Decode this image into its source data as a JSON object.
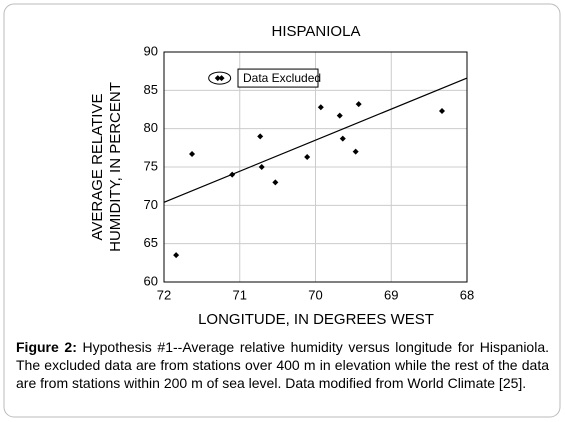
{
  "chart_data": {
    "type": "scatter",
    "title": "HISPANIOLA",
    "xlabel": "LONGITUDE, IN DEGREES WEST",
    "ylabel": [
      "AVERAGE RELATIVE",
      "HUMIDITY, IN PERCENT"
    ],
    "x": [
      71.84,
      71.63,
      71.1,
      70.73,
      70.71,
      70.53,
      70.11,
      69.93,
      69.68,
      69.64,
      69.47,
      69.43,
      68.33
    ],
    "values": [
      63.5,
      76.7,
      74.0,
      79.0,
      75.0,
      73.0,
      76.3,
      82.8,
      81.7,
      78.7,
      77.0,
      83.2,
      82.3
    ],
    "color": "#000000",
    "excluded": {
      "name": "Data Excluded",
      "x": [
        71.29,
        71.24
      ],
      "values": [
        86.6,
        86.6
      ]
    },
    "trend_line": {
      "x": [
        72,
        68
      ],
      "values": [
        70.4,
        86.6
      ]
    },
    "xlim": [
      72,
      68
    ],
    "xticks": [
      72,
      71,
      70,
      69,
      68
    ],
    "ylim": [
      60,
      90
    ],
    "yticks": [
      60,
      65,
      70,
      75,
      80,
      85,
      90
    ],
    "grid": true
  },
  "caption": {
    "label": "Figure 2:",
    "text": "Hypothesis #1--Average relative humidity versus longitude for Hispaniola. The excluded data are from stations over 400 m in elevation while the rest of the data are from stations within 200 m of sea level. Data modified from World Climate [25]."
  }
}
